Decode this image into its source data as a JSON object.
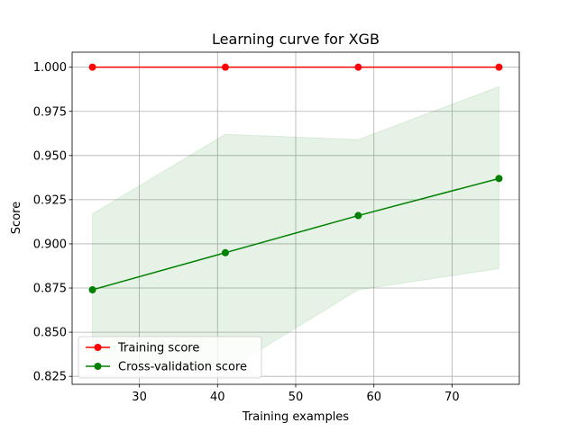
{
  "chart_data": {
    "type": "line",
    "title": "Learning curve for XGB",
    "xlabel": "Training examples",
    "ylabel": "Score",
    "xlim": [
      21.4,
      78.6
    ],
    "ylim": [
      0.8205,
      1.0085
    ],
    "xticks": [
      30,
      40,
      50,
      60,
      70
    ],
    "yticks": [
      0.825,
      0.85,
      0.875,
      0.9,
      0.925,
      0.95,
      0.975,
      1.0
    ],
    "xtick_labels": [
      "30",
      "40",
      "50",
      "60",
      "70"
    ],
    "ytick_labels": [
      "0.825",
      "0.850",
      "0.875",
      "0.900",
      "0.925",
      "0.950",
      "0.975",
      "1.000"
    ],
    "grid": true,
    "legend_position": "lower-left",
    "x": [
      24,
      41,
      58,
      76
    ],
    "series": [
      {
        "name": "Training score",
        "color": "#ff0000",
        "values": [
          1.0,
          1.0,
          1.0,
          1.0
        ],
        "band_lower": [
          1.0,
          1.0,
          1.0,
          1.0
        ],
        "band_upper": [
          1.0,
          1.0,
          1.0,
          1.0
        ],
        "band_color": "#ff0000"
      },
      {
        "name": "Cross-validation score",
        "color": "#008000",
        "values": [
          0.874,
          0.895,
          0.916,
          0.937
        ],
        "band_lower": [
          0.831,
          0.828,
          0.874,
          0.886
        ],
        "band_upper": [
          0.917,
          0.962,
          0.959,
          0.989
        ],
        "band_color": "#008000"
      }
    ]
  }
}
